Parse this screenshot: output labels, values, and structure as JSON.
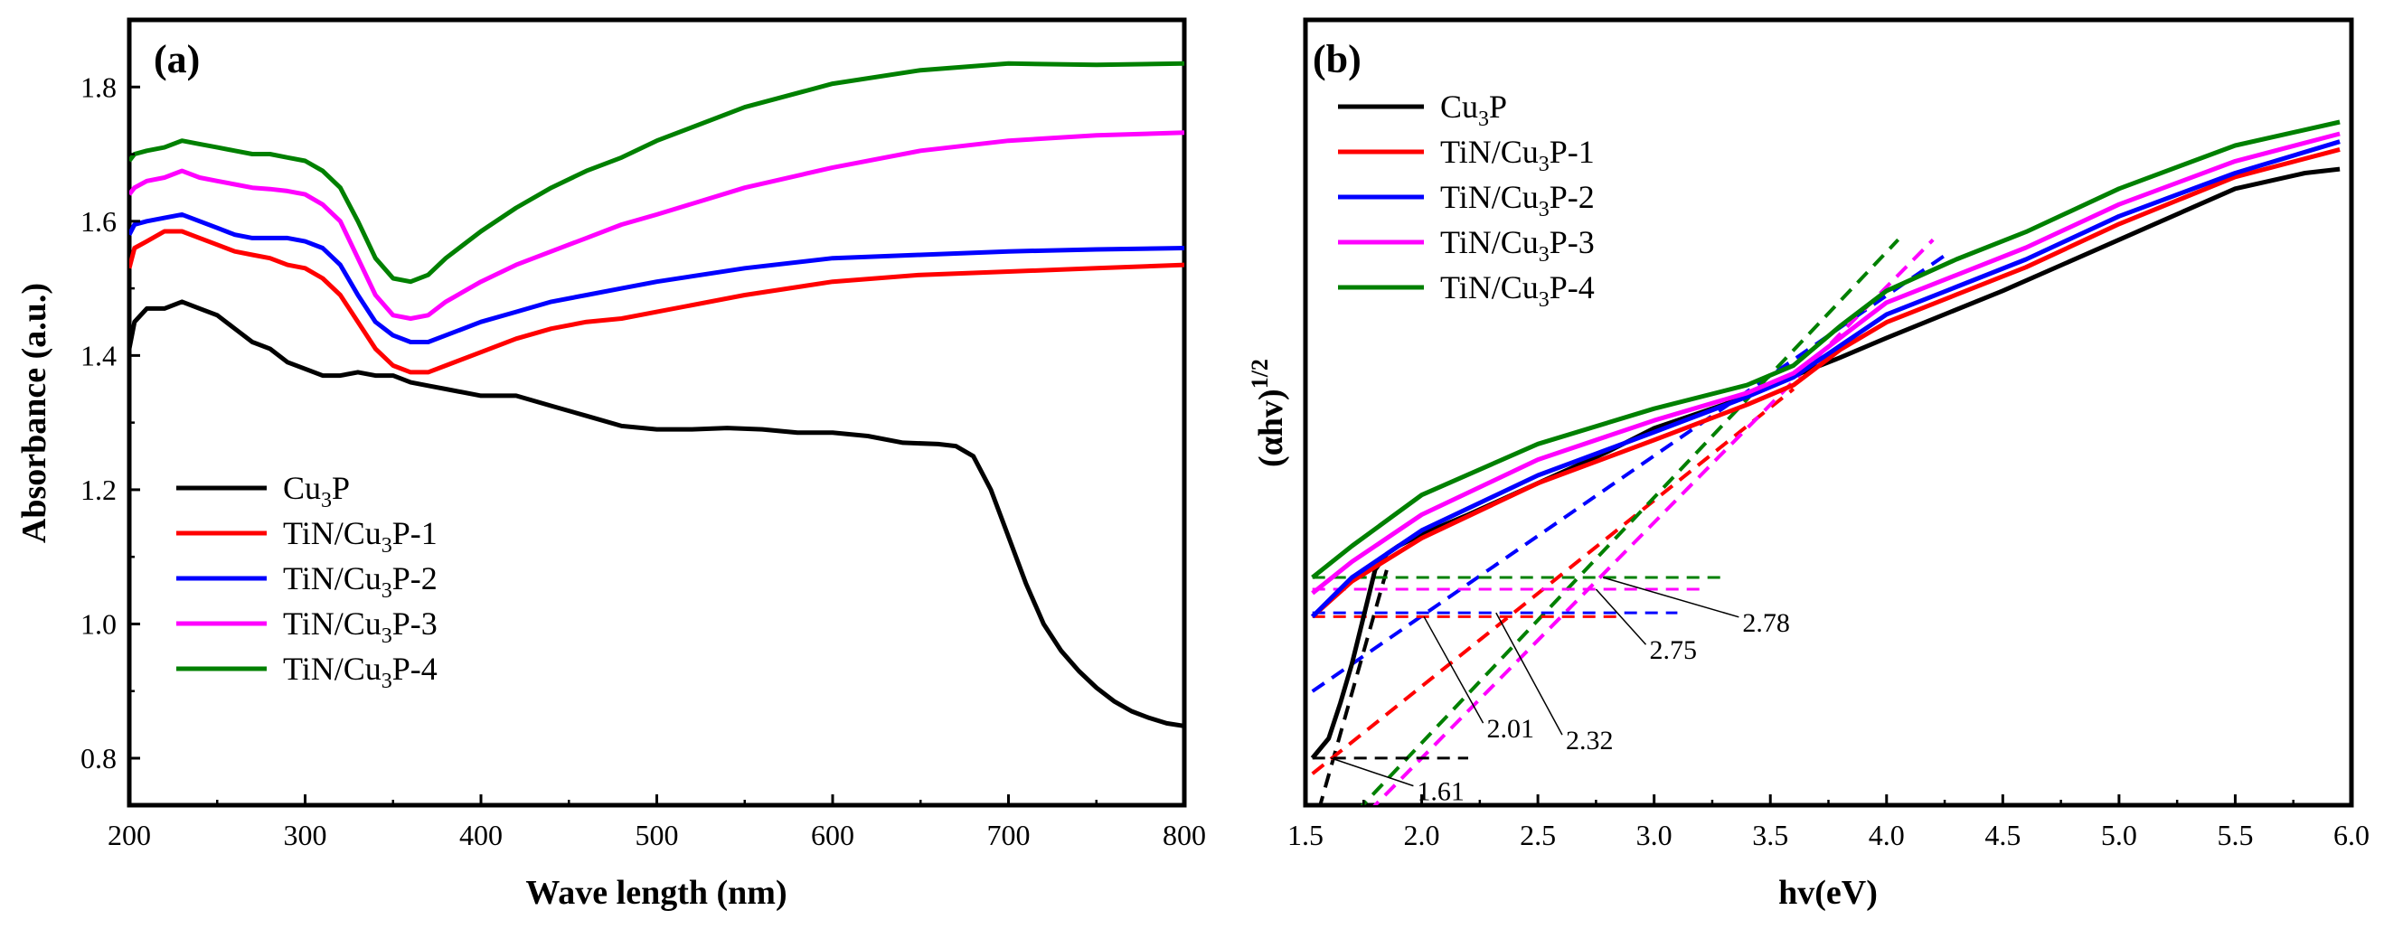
{
  "chart_data": [
    {
      "type": "line",
      "panel_label": "(a)",
      "xlabel": "Wave length (nm)",
      "ylabel": "Absorbance (a.u.)",
      "xlim": [
        200,
        800
      ],
      "ylim": [
        0.73,
        1.9
      ],
      "xticks": [
        200,
        300,
        400,
        500,
        600,
        700,
        800
      ],
      "yticks": [
        0.8,
        1.0,
        1.2,
        1.4,
        1.6,
        1.8
      ],
      "ytick_labels": [
        "0.8",
        "1.0",
        "1.2",
        "1.4",
        "1.6",
        "1.8"
      ],
      "legend": [
        {
          "base": "Cu",
          "sub": "3",
          "rest": "P",
          "color": "#000000"
        },
        {
          "base": "TiN/Cu",
          "sub": "3",
          "rest": "P-1",
          "color": "#ff0000"
        },
        {
          "base": "TiN/Cu",
          "sub": "3",
          "rest": "P-2",
          "color": "#0000ff"
        },
        {
          "base": "TiN/Cu",
          "sub": "3",
          "rest": "P-3",
          "color": "#ff00ff"
        },
        {
          "base": "TiN/Cu",
          "sub": "3",
          "rest": "P-4",
          "color": "#008000"
        }
      ],
      "series": [
        {
          "name": "Cu3P",
          "color": "#000000",
          "x": [
            200,
            203,
            210,
            220,
            230,
            240,
            250,
            260,
            270,
            280,
            290,
            300,
            310,
            320,
            330,
            340,
            350,
            360,
            370,
            380,
            400,
            420,
            440,
            460,
            480,
            500,
            520,
            540,
            560,
            580,
            600,
            620,
            640,
            660,
            670,
            680,
            690,
            700,
            710,
            720,
            730,
            740,
            750,
            760,
            770,
            780,
            790,
            800
          ],
          "y": [
            1.41,
            1.45,
            1.47,
            1.47,
            1.48,
            1.47,
            1.46,
            1.44,
            1.42,
            1.41,
            1.39,
            1.38,
            1.37,
            1.37,
            1.375,
            1.37,
            1.37,
            1.36,
            1.355,
            1.35,
            1.34,
            1.34,
            1.325,
            1.31,
            1.295,
            1.29,
            1.29,
            1.292,
            1.29,
            1.285,
            1.285,
            1.28,
            1.27,
            1.268,
            1.265,
            1.25,
            1.2,
            1.13,
            1.06,
            1.0,
            0.96,
            0.93,
            0.905,
            0.885,
            0.87,
            0.86,
            0.852,
            0.848
          ]
        },
        {
          "name": "TiN/Cu3P-1",
          "color": "#ff0000",
          "x": [
            200,
            203,
            210,
            220,
            230,
            240,
            250,
            260,
            270,
            280,
            290,
            300,
            310,
            320,
            330,
            340,
            350,
            360,
            370,
            380,
            400,
            420,
            440,
            460,
            480,
            500,
            550,
            600,
            650,
            700,
            750,
            800
          ],
          "y": [
            1.53,
            1.56,
            1.57,
            1.585,
            1.585,
            1.575,
            1.565,
            1.555,
            1.55,
            1.545,
            1.535,
            1.53,
            1.515,
            1.49,
            1.45,
            1.41,
            1.385,
            1.375,
            1.375,
            1.385,
            1.405,
            1.425,
            1.44,
            1.45,
            1.455,
            1.465,
            1.49,
            1.51,
            1.52,
            1.525,
            1.53,
            1.535
          ]
        },
        {
          "name": "TiN/Cu3P-2",
          "color": "#0000ff",
          "x": [
            200,
            203,
            210,
            220,
            230,
            240,
            250,
            260,
            270,
            280,
            290,
            300,
            310,
            320,
            330,
            340,
            350,
            360,
            370,
            380,
            400,
            420,
            440,
            460,
            480,
            500,
            550,
            600,
            650,
            700,
            750,
            800
          ],
          "y": [
            1.58,
            1.595,
            1.6,
            1.605,
            1.61,
            1.6,
            1.59,
            1.58,
            1.575,
            1.575,
            1.575,
            1.57,
            1.56,
            1.535,
            1.49,
            1.45,
            1.43,
            1.42,
            1.42,
            1.43,
            1.45,
            1.465,
            1.48,
            1.49,
            1.5,
            1.51,
            1.53,
            1.545,
            1.55,
            1.555,
            1.558,
            1.56
          ]
        },
        {
          "name": "TiN/Cu3P-3",
          "color": "#ff00ff",
          "x": [
            200,
            203,
            210,
            220,
            230,
            240,
            250,
            260,
            270,
            280,
            290,
            300,
            310,
            320,
            330,
            340,
            350,
            360,
            370,
            380,
            400,
            420,
            440,
            460,
            480,
            500,
            550,
            600,
            650,
            700,
            750,
            800
          ],
          "y": [
            1.64,
            1.65,
            1.66,
            1.665,
            1.675,
            1.665,
            1.66,
            1.655,
            1.65,
            1.648,
            1.645,
            1.64,
            1.625,
            1.6,
            1.545,
            1.49,
            1.46,
            1.455,
            1.46,
            1.48,
            1.51,
            1.535,
            1.555,
            1.575,
            1.595,
            1.61,
            1.65,
            1.68,
            1.705,
            1.72,
            1.728,
            1.732
          ]
        },
        {
          "name": "TiN/Cu3P-4",
          "color": "#008000",
          "x": [
            200,
            203,
            210,
            220,
            230,
            240,
            250,
            260,
            270,
            280,
            290,
            300,
            310,
            320,
            330,
            340,
            350,
            360,
            370,
            380,
            400,
            420,
            440,
            460,
            480,
            500,
            550,
            600,
            650,
            700,
            750,
            800
          ],
          "y": [
            1.69,
            1.7,
            1.705,
            1.71,
            1.72,
            1.715,
            1.71,
            1.705,
            1.7,
            1.7,
            1.695,
            1.69,
            1.675,
            1.65,
            1.6,
            1.545,
            1.515,
            1.51,
            1.52,
            1.545,
            1.585,
            1.62,
            1.65,
            1.675,
            1.695,
            1.72,
            1.77,
            1.805,
            1.825,
            1.835,
            1.833,
            1.835
          ]
        }
      ]
    },
    {
      "type": "line",
      "panel_label": "(b)",
      "xlabel": "hv(eV)",
      "ylabel": "(αhv)",
      "ylabel_sup": "1/2",
      "xlim": [
        1.5,
        6.0
      ],
      "ylim": [
        0,
        1
      ],
      "xticks": [
        1.5,
        2.0,
        2.5,
        3.0,
        3.5,
        4.0,
        4.5,
        5.0,
        5.5,
        6.0
      ],
      "xtick_labels": [
        "1.5",
        "2.0",
        "2.5",
        "3.0",
        "3.5",
        "4.0",
        "4.5",
        "5.0",
        "5.5",
        "6.0"
      ],
      "y_tick_labels_shown": false,
      "legend": [
        {
          "base": "Cu",
          "sub": "3",
          "rest": "P",
          "color": "#000000"
        },
        {
          "base": "TiN/Cu",
          "sub": "3",
          "rest": "P-1",
          "color": "#ff0000"
        },
        {
          "base": "TiN/Cu",
          "sub": "3",
          "rest": "P-2",
          "color": "#0000ff"
        },
        {
          "base": "TiN/Cu",
          "sub": "3",
          "rest": "P-3",
          "color": "#ff00ff"
        },
        {
          "base": "TiN/Cu",
          "sub": "3",
          "rest": "P-4",
          "color": "#008000"
        }
      ],
      "series": [
        {
          "name": "Cu3P",
          "color": "#000000",
          "x": [
            1.53,
            1.6,
            1.65,
            1.7,
            1.75,
            1.8,
            1.85,
            1.9,
            2.0,
            2.2,
            2.5,
            2.8,
            3.0,
            3.3,
            3.5,
            3.8,
            4.0,
            4.5,
            5.0,
            5.5,
            5.8,
            5.95
          ],
          "y": [
            0.06,
            0.085,
            0.13,
            0.18,
            0.24,
            0.3,
            0.32,
            0.33,
            0.345,
            0.37,
            0.41,
            0.45,
            0.48,
            0.51,
            0.535,
            0.57,
            0.595,
            0.655,
            0.72,
            0.785,
            0.805,
            0.81
          ]
        },
        {
          "name": "TiN/Cu3P-1",
          "color": "#ff0000",
          "x": [
            1.53,
            1.7,
            2.0,
            2.5,
            3.0,
            3.4,
            3.6,
            3.8,
            4.0,
            4.3,
            4.6,
            5.0,
            5.5,
            5.95
          ],
          "y": [
            0.24,
            0.285,
            0.34,
            0.41,
            0.465,
            0.51,
            0.535,
            0.58,
            0.615,
            0.65,
            0.685,
            0.74,
            0.8,
            0.835
          ]
        },
        {
          "name": "TiN/Cu3P-2",
          "color": "#0000ff",
          "x": [
            1.53,
            1.7,
            2.0,
            2.5,
            3.0,
            3.4,
            3.6,
            3.8,
            4.0,
            4.3,
            4.6,
            5.0,
            5.5,
            5.95
          ],
          "y": [
            0.24,
            0.29,
            0.35,
            0.42,
            0.475,
            0.52,
            0.545,
            0.585,
            0.625,
            0.66,
            0.695,
            0.75,
            0.805,
            0.845
          ]
        },
        {
          "name": "TiN/Cu3P-3",
          "color": "#ff00ff",
          "x": [
            1.53,
            1.7,
            2.0,
            2.5,
            3.0,
            3.4,
            3.6,
            3.8,
            4.0,
            4.3,
            4.6,
            5.0,
            5.5,
            5.95
          ],
          "y": [
            0.27,
            0.31,
            0.37,
            0.44,
            0.49,
            0.525,
            0.55,
            0.595,
            0.64,
            0.675,
            0.71,
            0.765,
            0.82,
            0.855
          ]
        },
        {
          "name": "TiN/Cu3P-4",
          "color": "#008000",
          "x": [
            1.53,
            1.7,
            2.0,
            2.5,
            3.0,
            3.4,
            3.6,
            3.8,
            4.0,
            4.3,
            4.6,
            5.0,
            5.5,
            5.95
          ],
          "y": [
            0.29,
            0.33,
            0.395,
            0.46,
            0.505,
            0.535,
            0.56,
            0.61,
            0.655,
            0.695,
            0.73,
            0.785,
            0.84,
            0.87
          ]
        }
      ],
      "tangent_lines": [
        {
          "name": "Cu3P",
          "color": "#000000",
          "x": [
            1.53,
            1.85
          ],
          "y": [
            -0.035,
            0.3
          ]
        },
        {
          "name": "TiN/Cu3P-1",
          "color": "#ff0000",
          "x": [
            1.53,
            3.6
          ],
          "y": [
            0.04,
            0.53
          ]
        },
        {
          "name": "TiN/Cu3P-2",
          "color": "#0000ff",
          "x": [
            1.53,
            4.25
          ],
          "y": [
            0.145,
            0.7
          ]
        },
        {
          "name": "TiN/Cu3P-3",
          "color": "#ff00ff",
          "x": [
            1.7,
            4.2
          ],
          "y": [
            -0.03,
            0.72
          ]
        },
        {
          "name": "TiN/Cu3P-4",
          "color": "#008000",
          "x": [
            1.65,
            4.05
          ],
          "y": [
            -0.03,
            0.72
          ]
        }
      ],
      "baselines": [
        {
          "name": "Cu3P",
          "color": "#000000",
          "x": [
            1.53,
            2.2
          ],
          "y": [
            0.06,
            0.06
          ]
        },
        {
          "name": "TiN/Cu3P-1",
          "color": "#ff0000",
          "x": [
            1.53,
            2.85
          ],
          "y": [
            0.24,
            0.24
          ]
        },
        {
          "name": "TiN/Cu3P-2",
          "color": "#0000ff",
          "x": [
            1.53,
            3.1
          ],
          "y": [
            0.245,
            0.245
          ]
        },
        {
          "name": "TiN/Cu3P-3",
          "color": "#ff00ff",
          "x": [
            1.53,
            3.2
          ],
          "y": [
            0.275,
            0.275
          ]
        },
        {
          "name": "TiN/Cu3P-4",
          "color": "#008000",
          "x": [
            1.53,
            3.3
          ],
          "y": [
            0.29,
            0.29
          ]
        }
      ],
      "annotations": [
        {
          "text": "1.61",
          "point": [
            1.61,
            0.06
          ],
          "label": [
            1.98,
            0.02
          ]
        },
        {
          "text": "2.01",
          "point": [
            2.01,
            0.24
          ],
          "label": [
            2.28,
            0.1
          ]
        },
        {
          "text": "2.32",
          "point": [
            2.32,
            0.245
          ],
          "label": [
            2.62,
            0.085
          ]
        },
        {
          "text": "2.75",
          "point": [
            2.75,
            0.275
          ],
          "label": [
            2.98,
            0.2
          ]
        },
        {
          "text": "2.78",
          "point": [
            2.78,
            0.29
          ],
          "label": [
            3.38,
            0.235
          ]
        }
      ]
    }
  ]
}
